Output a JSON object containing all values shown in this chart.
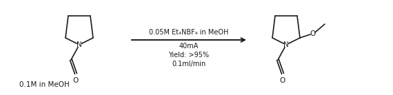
{
  "bg_color": "#ffffff",
  "arrow_text_line1": "0.05M Et₄NBF₄ in MeOH",
  "arrow_text_line2": "40mA",
  "arrow_text_line3": "Yield: >95%",
  "arrow_text_line4": "0.1ml/min",
  "bottom_text": "0.1M in MeOH",
  "text_color": "#1a1a1a",
  "line_color": "#1a1a1a",
  "font_size_arrow": 7.0,
  "font_size_atom": 7.5,
  "font_size_bottom": 7.5,
  "fig_width": 5.7,
  "fig_height": 1.38,
  "dpi": 100
}
